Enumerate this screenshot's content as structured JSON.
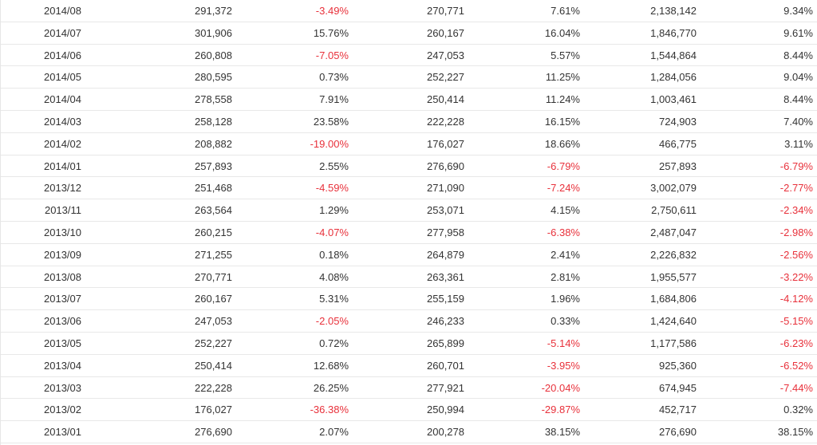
{
  "colors": {
    "negative": "#e8313b",
    "text": "#333333",
    "border": "#e8e8e8"
  },
  "rows": [
    [
      "2014/08",
      "291,372",
      "-3.49%",
      "270,771",
      "7.61%",
      "2,138,142",
      "9.34%"
    ],
    [
      "2014/07",
      "301,906",
      "15.76%",
      "260,167",
      "16.04%",
      "1,846,770",
      "9.61%"
    ],
    [
      "2014/06",
      "260,808",
      "-7.05%",
      "247,053",
      "5.57%",
      "1,544,864",
      "8.44%"
    ],
    [
      "2014/05",
      "280,595",
      "0.73%",
      "252,227",
      "11.25%",
      "1,284,056",
      "9.04%"
    ],
    [
      "2014/04",
      "278,558",
      "7.91%",
      "250,414",
      "11.24%",
      "1,003,461",
      "8.44%"
    ],
    [
      "2014/03",
      "258,128",
      "23.58%",
      "222,228",
      "16.15%",
      "724,903",
      "7.40%"
    ],
    [
      "2014/02",
      "208,882",
      "-19.00%",
      "176,027",
      "18.66%",
      "466,775",
      "3.11%"
    ],
    [
      "2014/01",
      "257,893",
      "2.55%",
      "276,690",
      "-6.79%",
      "257,893",
      "-6.79%"
    ],
    [
      "2013/12",
      "251,468",
      "-4.59%",
      "271,090",
      "-7.24%",
      "3,002,079",
      "-2.77%"
    ],
    [
      "2013/11",
      "263,564",
      "1.29%",
      "253,071",
      "4.15%",
      "2,750,611",
      "-2.34%"
    ],
    [
      "2013/10",
      "260,215",
      "-4.07%",
      "277,958",
      "-6.38%",
      "2,487,047",
      "-2.98%"
    ],
    [
      "2013/09",
      "271,255",
      "0.18%",
      "264,879",
      "2.41%",
      "2,226,832",
      "-2.56%"
    ],
    [
      "2013/08",
      "270,771",
      "4.08%",
      "263,361",
      "2.81%",
      "1,955,577",
      "-3.22%"
    ],
    [
      "2013/07",
      "260,167",
      "5.31%",
      "255,159",
      "1.96%",
      "1,684,806",
      "-4.12%"
    ],
    [
      "2013/06",
      "247,053",
      "-2.05%",
      "246,233",
      "0.33%",
      "1,424,640",
      "-5.15%"
    ],
    [
      "2013/05",
      "252,227",
      "0.72%",
      "265,899",
      "-5.14%",
      "1,177,586",
      "-6.23%"
    ],
    [
      "2013/04",
      "250,414",
      "12.68%",
      "260,701",
      "-3.95%",
      "925,360",
      "-6.52%"
    ],
    [
      "2013/03",
      "222,228",
      "26.25%",
      "277,921",
      "-20.04%",
      "674,945",
      "-7.44%"
    ],
    [
      "2013/02",
      "176,027",
      "-36.38%",
      "250,994",
      "-29.87%",
      "452,717",
      "0.32%"
    ],
    [
      "2013/01",
      "276,690",
      "2.07%",
      "200,278",
      "38.15%",
      "276,690",
      "38.15%"
    ]
  ]
}
